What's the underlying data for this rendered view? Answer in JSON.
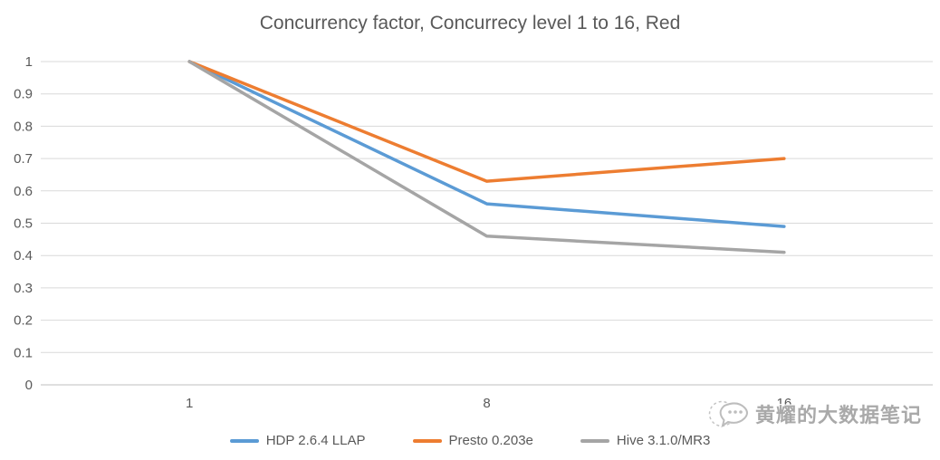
{
  "chart_data": {
    "type": "line",
    "title": "Concurrency factor, Concurrecy level 1 to 16, Red",
    "xlabel": "",
    "ylabel": "",
    "x_categories": [
      "1",
      "8",
      "16"
    ],
    "yticks": [
      "1",
      "0.9",
      "0.8",
      "0.7",
      "0.6",
      "0.5",
      "0.4",
      "0.3",
      "0.2",
      "0.1",
      "0"
    ],
    "ylim": [
      0,
      1
    ],
    "grid": true,
    "legend_position": "bottom",
    "series": [
      {
        "name": "HDP 2.6.4 LLAP",
        "color": "#5B9BD5",
        "values": [
          1,
          0.56,
          0.49
        ]
      },
      {
        "name": "Presto 0.203e",
        "color": "#ED7D31",
        "values": [
          1,
          0.63,
          0.7
        ]
      },
      {
        "name": "Hive 3.1.0/MR3",
        "color": "#A5A5A5",
        "values": [
          1,
          0.46,
          0.41
        ]
      }
    ],
    "colors": {
      "gridline": "#D9D9D9",
      "axis_line": "#BFBFBF",
      "tick_text": "#595959",
      "title_text": "#595959"
    }
  },
  "watermark": {
    "text": "黄耀的大数据笔记"
  }
}
